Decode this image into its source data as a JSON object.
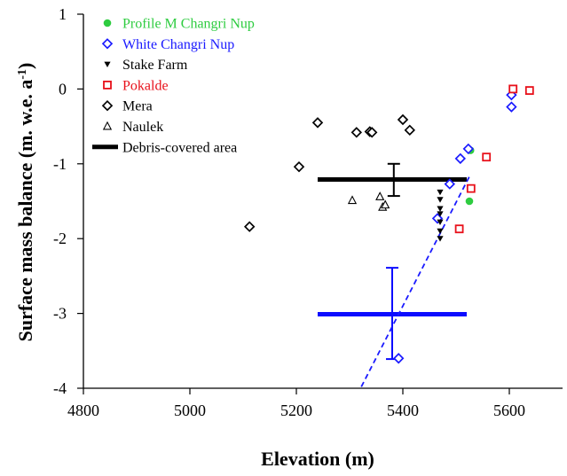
{
  "chart_data": {
    "type": "scatter",
    "xlabel": "Elevation (m)",
    "ylabel_main": "Surface mass balance (m. w.e. a",
    "ylabel_sup": "-1",
    "ylabel_close": ")",
    "xlim": [
      4800,
      5700
    ],
    "ylim": [
      -4,
      1
    ],
    "x_ticks": [
      4800,
      5000,
      5200,
      5400,
      5600
    ],
    "y_ticks": [
      1,
      0,
      -1,
      -2,
      -3,
      -4
    ],
    "y_tick_labels": [
      "1",
      "0",
      "-1",
      "-2",
      "-3",
      "-4"
    ],
    "x_tick_labels": [
      "4800",
      "5000",
      "5200",
      "5400",
      "5600"
    ],
    "grid": false,
    "legend_position": "top-left",
    "series": [
      {
        "name": "Profile M Changri Nup",
        "marker": "filled-circle",
        "color": "#2ecc40",
        "points": [
          [
            5527,
            -0.82
          ],
          [
            5525,
            -1.5
          ]
        ]
      },
      {
        "name": "White Changri Nup",
        "marker": "open-diamond",
        "color": "#1a1aff",
        "points": [
          [
            5523,
            -0.8
          ],
          [
            5508,
            -0.93
          ],
          [
            5488,
            -1.27
          ],
          [
            5465,
            -1.73
          ],
          [
            5392,
            -3.6
          ],
          [
            5604,
            -0.08
          ],
          [
            5604,
            -0.24
          ]
        ]
      },
      {
        "name": "Stake Farm",
        "marker": "filled-triangle-down",
        "color": "#000000",
        "points": [
          [
            5470,
            -1.38
          ],
          [
            5470,
            -1.48
          ],
          [
            5470,
            -1.6
          ],
          [
            5470,
            -1.67
          ],
          [
            5470,
            -1.78
          ],
          [
            5470,
            -1.9
          ],
          [
            5470,
            -2.0
          ]
        ]
      },
      {
        "name": "Pokalde",
        "marker": "open-square",
        "color": "#e8101a",
        "points": [
          [
            5607,
            0.0
          ],
          [
            5638,
            -0.02
          ],
          [
            5557,
            -0.91
          ],
          [
            5528,
            -1.33
          ],
          [
            5506,
            -1.87
          ]
        ]
      },
      {
        "name": "Mera",
        "marker": "open-diamond",
        "color": "#000000",
        "points": [
          [
            5240,
            -0.45
          ],
          [
            5400,
            -0.41
          ],
          [
            5413,
            -0.55
          ],
          [
            5313,
            -0.58
          ],
          [
            5338,
            -0.57
          ],
          [
            5342,
            -0.58
          ],
          [
            5205,
            -1.04
          ],
          [
            5112,
            -1.84
          ]
        ]
      },
      {
        "name": "Naulek",
        "marker": "open-triangle-up",
        "color": "#000000",
        "points": [
          [
            5305,
            -1.49
          ],
          [
            5357,
            -1.44
          ],
          [
            5362,
            -1.58
          ],
          [
            5367,
            -1.55
          ]
        ]
      },
      {
        "name": "Debris-covered area",
        "marker": "thick-line",
        "color": "#000000"
      }
    ],
    "mean_markers": [
      {
        "color": "#000000",
        "x_range": [
          5240,
          5520
        ],
        "y": -1.21,
        "error_x": 5383,
        "error_low": -1.43,
        "error_high": -1.0
      },
      {
        "color": "#0c0cff",
        "x_range": [
          5240,
          5520
        ],
        "y": -3.01,
        "error_x": 5380,
        "error_low": -3.61,
        "error_high": -2.39
      }
    ],
    "regression_line": {
      "color": "#1a1aff",
      "style": "dashed",
      "points": [
        [
          5322,
          -3.98
        ],
        [
          5525,
          -1.17
        ]
      ]
    }
  }
}
